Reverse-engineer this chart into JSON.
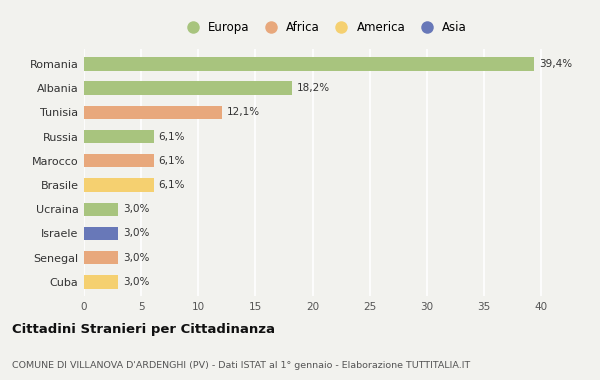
{
  "countries": [
    "Romania",
    "Albania",
    "Tunisia",
    "Russia",
    "Marocco",
    "Brasile",
    "Ucraina",
    "Israele",
    "Senegal",
    "Cuba"
  ],
  "values": [
    39.4,
    18.2,
    12.1,
    6.1,
    6.1,
    6.1,
    3.0,
    3.0,
    3.0,
    3.0
  ],
  "labels": [
    "39,4%",
    "18,2%",
    "12,1%",
    "6,1%",
    "6,1%",
    "6,1%",
    "3,0%",
    "3,0%",
    "3,0%",
    "3,0%"
  ],
  "continents": [
    "Europa",
    "Europa",
    "Africa",
    "Europa",
    "Africa",
    "America",
    "Europa",
    "Asia",
    "Africa",
    "America"
  ],
  "colors": {
    "Europa": "#a8c47e",
    "Africa": "#e8a87c",
    "America": "#f5d070",
    "Asia": "#6878b8"
  },
  "xlim": [
    0,
    42
  ],
  "xticks": [
    0,
    5,
    10,
    15,
    20,
    25,
    30,
    35,
    40
  ],
  "title": "Cittadini Stranieri per Cittadinanza",
  "subtitle": "COMUNE DI VILLANOVA D'ARDENGHI (PV) - Dati ISTAT al 1° gennaio - Elaborazione TUTTITALIA.IT",
  "background_color": "#f2f2ee",
  "grid_color": "#ffffff",
  "bar_height": 0.55,
  "legend_order": [
    "Europa",
    "Africa",
    "America",
    "Asia"
  ]
}
